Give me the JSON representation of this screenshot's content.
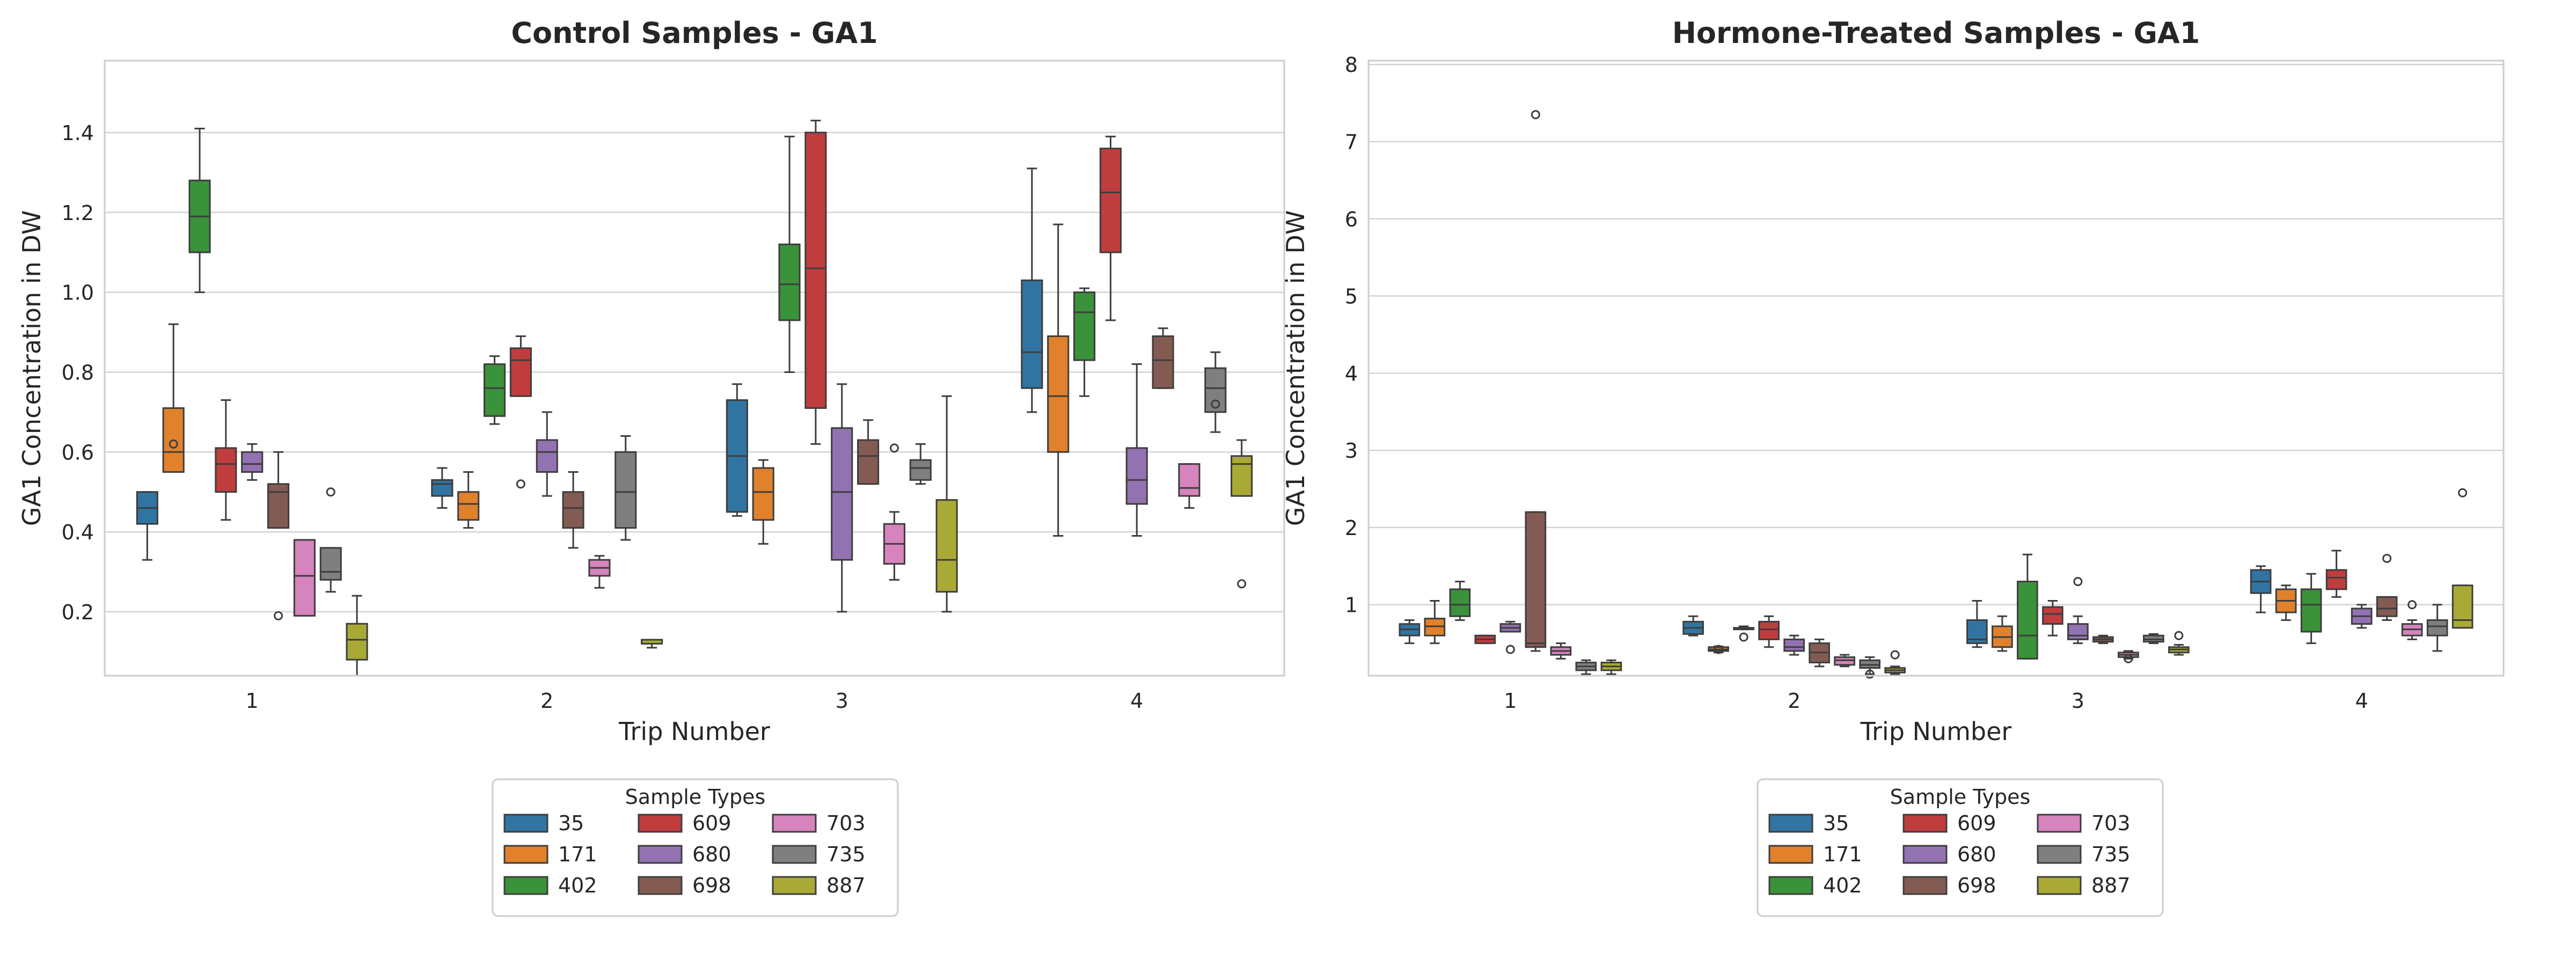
{
  "colors": {
    "35": "#3274a1",
    "171": "#e1812c",
    "402": "#3a923a",
    "609": "#c03d3e",
    "680": "#9372b2",
    "698": "#845b53",
    "703": "#d684bd",
    "735": "#7f7f7f",
    "887": "#a9aa35"
  },
  "chart_data": [
    {
      "type": "box",
      "title": "Control Samples - GA1",
      "xlabel": "Trip Number",
      "ylabel": "GA1 Concentration in DW",
      "categories": [
        "1",
        "2",
        "3",
        "4"
      ],
      "ylim": [
        0.04,
        1.58
      ],
      "yticks": [
        0.2,
        0.4,
        0.6,
        0.8,
        1.0,
        1.2,
        1.4
      ],
      "ytick_labels": [
        "0.2",
        "0.4",
        "0.6",
        "0.8",
        "1.0",
        "1.2",
        "1.4"
      ],
      "grid": true,
      "legend": {
        "title": "Sample Types",
        "placement": "below",
        "ncol": 3
      },
      "series": [
        {
          "name": "35",
          "boxes": [
            {
              "lo": 0.33,
              "q1": 0.42,
              "med": 0.46,
              "q3": 0.5,
              "hi": 0.5,
              "fliers": []
            },
            {
              "lo": 0.46,
              "q1": 0.49,
              "med": 0.52,
              "q3": 0.53,
              "hi": 0.56,
              "fliers": []
            },
            {
              "lo": 0.44,
              "q1": 0.45,
              "med": 0.59,
              "q3": 0.73,
              "hi": 0.77,
              "fliers": []
            },
            {
              "lo": 0.7,
              "q1": 0.76,
              "med": 0.85,
              "q3": 1.03,
              "hi": 1.31,
              "fliers": []
            }
          ]
        },
        {
          "name": "171",
          "boxes": [
            {
              "lo": 0.55,
              "q1": 0.55,
              "med": 0.6,
              "q3": 0.71,
              "hi": 0.92,
              "fliers": [
                0.62
              ]
            },
            {
              "lo": 0.41,
              "q1": 0.43,
              "med": 0.47,
              "q3": 0.5,
              "hi": 0.55,
              "fliers": []
            },
            {
              "lo": 0.37,
              "q1": 0.43,
              "med": 0.5,
              "q3": 0.56,
              "hi": 0.58,
              "fliers": []
            },
            {
              "lo": 0.39,
              "q1": 0.6,
              "med": 0.74,
              "q3": 0.89,
              "hi": 1.17,
              "fliers": []
            }
          ]
        },
        {
          "name": "402",
          "boxes": [
            {
              "lo": 1.0,
              "q1": 1.1,
              "med": 1.19,
              "q3": 1.28,
              "hi": 1.41,
              "fliers": []
            },
            {
              "lo": 0.67,
              "q1": 0.69,
              "med": 0.76,
              "q3": 0.82,
              "hi": 0.84,
              "fliers": []
            },
            {
              "lo": 0.8,
              "q1": 0.93,
              "med": 1.02,
              "q3": 1.12,
              "hi": 1.39,
              "fliers": []
            },
            {
              "lo": 0.74,
              "q1": 0.83,
              "med": 0.95,
              "q3": 1.0,
              "hi": 1.01,
              "fliers": []
            }
          ]
        },
        {
          "name": "609",
          "boxes": [
            {
              "lo": 0.43,
              "q1": 0.5,
              "med": 0.57,
              "q3": 0.61,
              "hi": 0.73,
              "fliers": []
            },
            {
              "lo": 0.74,
              "q1": 0.74,
              "med": 0.83,
              "q3": 0.86,
              "hi": 0.89,
              "fliers": [
                0.52
              ]
            },
            {
              "lo": 0.62,
              "q1": 0.71,
              "med": 1.06,
              "q3": 1.4,
              "hi": 1.43,
              "fliers": []
            },
            {
              "lo": 0.93,
              "q1": 1.1,
              "med": 1.25,
              "q3": 1.36,
              "hi": 1.39,
              "fliers": []
            }
          ]
        },
        {
          "name": "680",
          "boxes": [
            {
              "lo": 0.53,
              "q1": 0.55,
              "med": 0.57,
              "q3": 0.6,
              "hi": 0.62,
              "fliers": []
            },
            {
              "lo": 0.49,
              "q1": 0.55,
              "med": 0.6,
              "q3": 0.63,
              "hi": 0.7,
              "fliers": []
            },
            {
              "lo": 0.2,
              "q1": 0.33,
              "med": 0.5,
              "q3": 0.66,
              "hi": 0.77,
              "fliers": []
            },
            {
              "lo": 0.39,
              "q1": 0.47,
              "med": 0.53,
              "q3": 0.61,
              "hi": 0.82,
              "fliers": []
            }
          ]
        },
        {
          "name": "698",
          "boxes": [
            {
              "lo": 0.41,
              "q1": 0.41,
              "med": 0.5,
              "q3": 0.52,
              "hi": 0.6,
              "fliers": [
                0.19
              ]
            },
            {
              "lo": 0.36,
              "q1": 0.41,
              "med": 0.46,
              "q3": 0.5,
              "hi": 0.55,
              "fliers": []
            },
            {
              "lo": 0.52,
              "q1": 0.52,
              "med": 0.59,
              "q3": 0.63,
              "hi": 0.68,
              "fliers": []
            },
            {
              "lo": 0.76,
              "q1": 0.76,
              "med": 0.83,
              "q3": 0.89,
              "hi": 0.91,
              "fliers": []
            }
          ]
        },
        {
          "name": "703",
          "boxes": [
            {
              "lo": 0.19,
              "q1": 0.19,
              "med": 0.29,
              "q3": 0.38,
              "hi": 0.38,
              "fliers": []
            },
            {
              "lo": 0.26,
              "q1": 0.29,
              "med": 0.31,
              "q3": 0.33,
              "hi": 0.34,
              "fliers": []
            },
            {
              "lo": 0.28,
              "q1": 0.32,
              "med": 0.37,
              "q3": 0.42,
              "hi": 0.45,
              "fliers": [
                0.61
              ]
            },
            {
              "lo": 0.46,
              "q1": 0.49,
              "med": 0.51,
              "q3": 0.57,
              "hi": 0.57,
              "fliers": []
            }
          ]
        },
        {
          "name": "735",
          "boxes": [
            {
              "lo": 0.25,
              "q1": 0.28,
              "med": 0.3,
              "q3": 0.36,
              "hi": 0.36,
              "fliers": [
                0.5
              ]
            },
            {
              "lo": 0.38,
              "q1": 0.41,
              "med": 0.5,
              "q3": 0.6,
              "hi": 0.64,
              "fliers": []
            },
            {
              "lo": 0.52,
              "q1": 0.53,
              "med": 0.56,
              "q3": 0.58,
              "hi": 0.62,
              "fliers": []
            },
            {
              "lo": 0.65,
              "q1": 0.7,
              "med": 0.76,
              "q3": 0.81,
              "hi": 0.85,
              "fliers": [
                0.72
              ]
            }
          ]
        },
        {
          "name": "887",
          "boxes": [
            {
              "lo": 0.04,
              "q1": 0.08,
              "med": 0.13,
              "q3": 0.17,
              "hi": 0.24,
              "fliers": []
            },
            {
              "lo": 0.11,
              "q1": 0.12,
              "med": 0.12,
              "q3": 0.13,
              "hi": 0.13,
              "fliers": []
            },
            {
              "lo": 0.2,
              "q1": 0.25,
              "med": 0.33,
              "q3": 0.48,
              "hi": 0.74,
              "fliers": []
            },
            {
              "lo": 0.49,
              "q1": 0.49,
              "med": 0.57,
              "q3": 0.59,
              "hi": 0.63,
              "fliers": [
                0.27
              ]
            }
          ]
        }
      ]
    },
    {
      "type": "box",
      "title": "Hormone-Treated Samples - GA1",
      "xlabel": "Trip Number",
      "ylabel": "GA1 Concentration in DW",
      "categories": [
        "1",
        "2",
        "3",
        "4"
      ],
      "ylim": [
        0.08,
        8.05
      ],
      "yticks": [
        1,
        2,
        3,
        4,
        5,
        6,
        7,
        8
      ],
      "ytick_labels": [
        "1",
        "2",
        "3",
        "4",
        "5",
        "6",
        "7",
        "8"
      ],
      "grid": true,
      "legend": {
        "title": "Sample Types",
        "placement": "below",
        "ncol": 3
      },
      "series": [
        {
          "name": "35",
          "boxes": [
            {
              "lo": 0.5,
              "q1": 0.6,
              "med": 0.68,
              "q3": 0.75,
              "hi": 0.8,
              "fliers": []
            },
            {
              "lo": 0.6,
              "q1": 0.62,
              "med": 0.7,
              "q3": 0.78,
              "hi": 0.85,
              "fliers": []
            },
            {
              "lo": 0.45,
              "q1": 0.5,
              "med": 0.55,
              "q3": 0.8,
              "hi": 1.05,
              "fliers": []
            },
            {
              "lo": 0.9,
              "q1": 1.15,
              "med": 1.3,
              "q3": 1.45,
              "hi": 1.5,
              "fliers": []
            }
          ]
        },
        {
          "name": "171",
          "boxes": [
            {
              "lo": 0.5,
              "q1": 0.6,
              "med": 0.72,
              "q3": 0.82,
              "hi": 1.05,
              "fliers": []
            },
            {
              "lo": 0.38,
              "q1": 0.4,
              "med": 0.42,
              "q3": 0.45,
              "hi": 0.46,
              "fliers": [
                0.42
              ]
            },
            {
              "lo": 0.4,
              "q1": 0.45,
              "med": 0.58,
              "q3": 0.72,
              "hi": 0.85,
              "fliers": []
            },
            {
              "lo": 0.8,
              "q1": 0.9,
              "med": 1.05,
              "q3": 1.2,
              "hi": 1.25,
              "fliers": []
            }
          ]
        },
        {
          "name": "402",
          "boxes": [
            {
              "lo": 0.8,
              "q1": 0.85,
              "med": 1.0,
              "q3": 1.2,
              "hi": 1.3,
              "fliers": []
            },
            {
              "lo": 0.68,
              "q1": 0.68,
              "med": 0.69,
              "q3": 0.7,
              "hi": 0.72,
              "fliers": [
                0.58
              ]
            },
            {
              "lo": 0.3,
              "q1": 0.3,
              "med": 0.6,
              "q3": 1.3,
              "hi": 1.65,
              "fliers": []
            },
            {
              "lo": 0.5,
              "q1": 0.65,
              "med": 1.0,
              "q3": 1.2,
              "hi": 1.4,
              "fliers": []
            }
          ]
        },
        {
          "name": "609",
          "boxes": [
            {
              "lo": 0.5,
              "q1": 0.5,
              "med": 0.55,
              "q3": 0.6,
              "hi": 0.6,
              "fliers": []
            },
            {
              "lo": 0.45,
              "q1": 0.55,
              "med": 0.68,
              "q3": 0.78,
              "hi": 0.85,
              "fliers": []
            },
            {
              "lo": 0.6,
              "q1": 0.75,
              "med": 0.88,
              "q3": 0.97,
              "hi": 1.05,
              "fliers": []
            },
            {
              "lo": 1.1,
              "q1": 1.2,
              "med": 1.35,
              "q3": 1.45,
              "hi": 1.7,
              "fliers": []
            }
          ]
        },
        {
          "name": "680",
          "boxes": [
            {
              "lo": 0.65,
              "q1": 0.65,
              "med": 0.7,
              "q3": 0.75,
              "hi": 0.78,
              "fliers": [
                0.42
              ]
            },
            {
              "lo": 0.35,
              "q1": 0.4,
              "med": 0.45,
              "q3": 0.55,
              "hi": 0.6,
              "fliers": []
            },
            {
              "lo": 0.5,
              "q1": 0.55,
              "med": 0.6,
              "q3": 0.75,
              "hi": 0.85,
              "fliers": [
                1.3
              ]
            },
            {
              "lo": 0.7,
              "q1": 0.75,
              "med": 0.85,
              "q3": 0.95,
              "hi": 1.0,
              "fliers": []
            }
          ]
        },
        {
          "name": "698",
          "boxes": [
            {
              "lo": 0.4,
              "q1": 0.45,
              "med": 0.5,
              "q3": 2.2,
              "hi": 2.2,
              "fliers": [
                7.35
              ]
            },
            {
              "lo": 0.2,
              "q1": 0.25,
              "med": 0.38,
              "q3": 0.5,
              "hi": 0.55,
              "fliers": []
            },
            {
              "lo": 0.5,
              "q1": 0.52,
              "med": 0.55,
              "q3": 0.58,
              "hi": 0.6,
              "fliers": []
            },
            {
              "lo": 0.8,
              "q1": 0.85,
              "med": 0.95,
              "q3": 1.1,
              "hi": 1.1,
              "fliers": [
                1.6
              ]
            }
          ]
        },
        {
          "name": "703",
          "boxes": [
            {
              "lo": 0.3,
              "q1": 0.35,
              "med": 0.4,
              "q3": 0.45,
              "hi": 0.5,
              "fliers": []
            },
            {
              "lo": 0.2,
              "q1": 0.22,
              "med": 0.28,
              "q3": 0.32,
              "hi": 0.35,
              "fliers": []
            },
            {
              "lo": 0.3,
              "q1": 0.32,
              "med": 0.35,
              "q3": 0.38,
              "hi": 0.4,
              "fliers": [
                0.3
              ]
            },
            {
              "lo": 0.55,
              "q1": 0.6,
              "med": 0.68,
              "q3": 0.75,
              "hi": 0.8,
              "fliers": [
                1.0
              ]
            }
          ]
        },
        {
          "name": "735",
          "boxes": [
            {
              "lo": 0.1,
              "q1": 0.15,
              "med": 0.2,
              "q3": 0.25,
              "hi": 0.28,
              "fliers": []
            },
            {
              "lo": 0.1,
              "q1": 0.18,
              "med": 0.22,
              "q3": 0.28,
              "hi": 0.32,
              "fliers": [
                0.1
              ]
            },
            {
              "lo": 0.5,
              "q1": 0.52,
              "med": 0.55,
              "q3": 0.6,
              "hi": 0.62,
              "fliers": []
            },
            {
              "lo": 0.4,
              "q1": 0.6,
              "med": 0.72,
              "q3": 0.8,
              "hi": 1.0,
              "fliers": []
            }
          ]
        },
        {
          "name": "887",
          "boxes": [
            {
              "lo": 0.1,
              "q1": 0.15,
              "med": 0.2,
              "q3": 0.25,
              "hi": 0.28,
              "fliers": []
            },
            {
              "lo": 0.1,
              "q1": 0.12,
              "med": 0.15,
              "q3": 0.18,
              "hi": 0.2,
              "fliers": [
                0.35
              ]
            },
            {
              "lo": 0.35,
              "q1": 0.38,
              "med": 0.42,
              "q3": 0.45,
              "hi": 0.48,
              "fliers": [
                0.6
              ]
            },
            {
              "lo": 0.7,
              "q1": 0.7,
              "med": 0.8,
              "q3": 1.25,
              "hi": 1.25,
              "fliers": [
                2.45
              ]
            }
          ]
        }
      ]
    }
  ]
}
